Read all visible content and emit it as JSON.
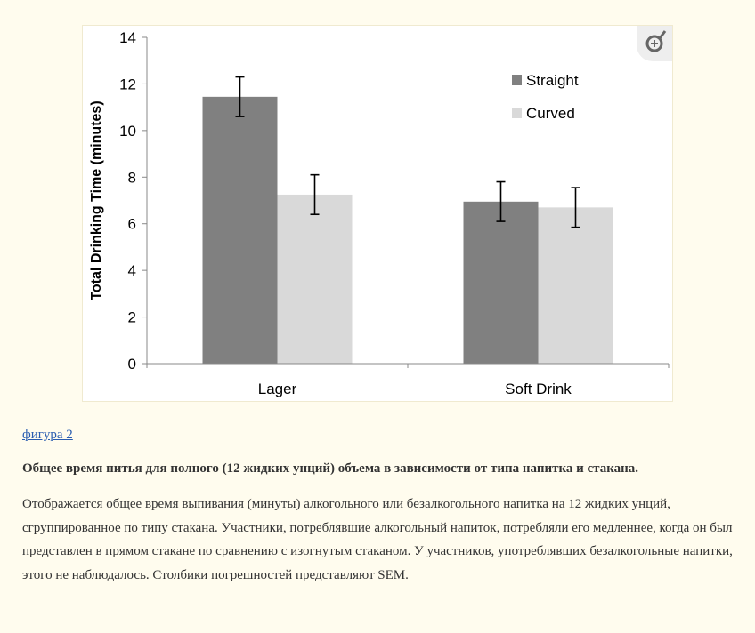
{
  "figure_link": "фигура 2",
  "figure_title": "Общее время питья для полного (12 жидких унций) объема в зависимости от типа напитка и стакана.",
  "figure_description": "Отображается общее время выпивания (минуты) алкогольного или безалкогольного напитка на 12 жидких унций, сгруппированное по типу стакана. Участники, потреблявшие алкогольный напиток, потребляли его медленнее, когда он был представлен в прямом стакане по сравнению с изогнутым стаканом. У участников, употреблявших безалкогольные напитки, этого не наблюдалось. Столбики погрешностей представляют SEM.",
  "zoom_icon": "zoom-in-icon",
  "chart_data": {
    "type": "bar",
    "title": "",
    "xlabel": "",
    "ylabel": "Total Drinking Time (minutes)",
    "ylim": [
      0,
      14
    ],
    "yticks": [
      "0",
      "2",
      "4",
      "6",
      "8",
      "10",
      "12",
      "14"
    ],
    "categories": [
      "Lager",
      "Soft Drink"
    ],
    "legend_position": "top-right",
    "grid": false,
    "series": [
      {
        "name": "Straight",
        "color": "#808080",
        "values": [
          11.45,
          6.95
        ],
        "error_low": [
          10.6,
          6.1
        ],
        "error_high": [
          12.3,
          7.8
        ]
      },
      {
        "name": "Curved",
        "color": "#d9d9d9",
        "values": [
          7.25,
          6.7
        ],
        "error_low": [
          6.4,
          5.85
        ],
        "error_high": [
          8.1,
          7.55
        ]
      }
    ]
  }
}
